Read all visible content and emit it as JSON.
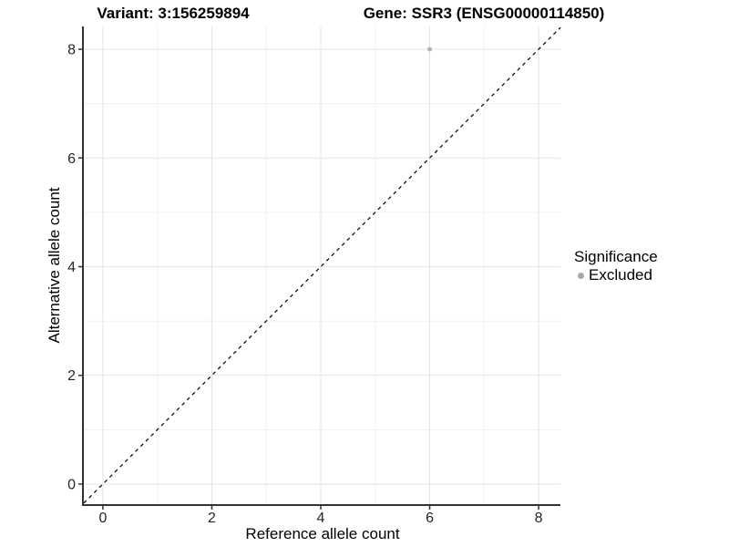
{
  "chart_data": {
    "type": "scatter",
    "title_left": "Variant: 3:156259894",
    "title_right": "Gene: SSR3 (ENSG00000114850)",
    "xlabel": "Reference allele count",
    "ylabel": "Alternative allele count",
    "xlim": [
      -0.35,
      8.4
    ],
    "ylim": [
      -0.37,
      8.42
    ],
    "x_ticks": [
      0,
      2,
      4,
      6,
      8
    ],
    "y_ticks": [
      0,
      2,
      4,
      6,
      8
    ],
    "x_minor_ticks": [
      1,
      3,
      5,
      7
    ],
    "y_minor_ticks": [
      1,
      3,
      5,
      7
    ],
    "grid": "on",
    "series": [
      {
        "name": "Excluded",
        "color": "#b3b3b3",
        "marker": "circle",
        "points": [
          {
            "x": 6,
            "y": 8
          }
        ]
      }
    ],
    "reference_line": {
      "type": "identity",
      "style": "dashed",
      "color": "#000000"
    },
    "legend": {
      "position": "right",
      "title": "Significance",
      "items": [
        {
          "label": "Excluded",
          "color": "#a8a8a8",
          "marker": "circle"
        }
      ]
    },
    "colors": {
      "background": "#ffffff",
      "grid_major": "#e3e3e3",
      "grid_minor": "#f1f1f1",
      "axis_line": "#333333",
      "tick_mark": "#333333",
      "tick_text": "#262626",
      "title_text": "#000000"
    }
  }
}
